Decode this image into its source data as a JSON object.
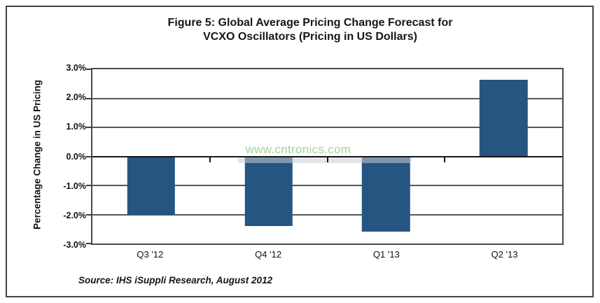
{
  "figure": {
    "title_line1": "Figure 5: Global Average Pricing Change Forecast for",
    "title_line2": "VCXO Oscillators (Pricing in US Dollars)"
  },
  "chart_data": {
    "type": "bar",
    "title": "Figure 5: Global Average Pricing Change Forecast for VCXO Oscillators (Pricing in US Dollars)",
    "categories": [
      "Q3 '12",
      "Q4 '12",
      "Q1 '13",
      "Q2 '13"
    ],
    "values": [
      -2.0,
      -2.4,
      -2.6,
      2.65
    ],
    "unit": "%",
    "xlabel": "",
    "ylabel": "Percentage Change in US Pricing",
    "ylim": [
      -3.0,
      3.0
    ],
    "ytick_step": 1.0,
    "ytick_labels": [
      "3.0%",
      "2.0%",
      "1.0%",
      "0.0%",
      "-1.0%",
      "-2.0%",
      "-3.0%"
    ],
    "grid": true,
    "legend": false,
    "bar_color": "#265581",
    "axis_color": "#4a4a4a",
    "zero_line_color": "#161616",
    "source": "Source: IHS iSuppli Research, August 2012",
    "watermark": "www.cntronics.com",
    "watermark_color": "#a0d49c"
  }
}
